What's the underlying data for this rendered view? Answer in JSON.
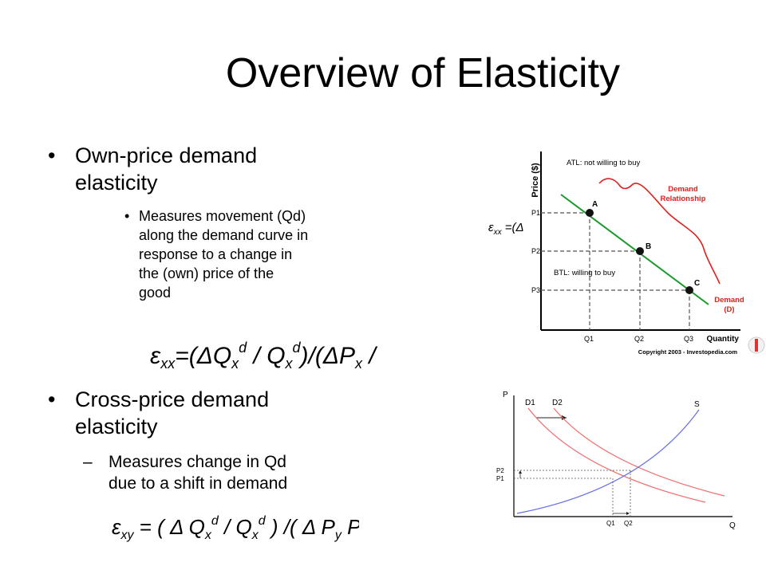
{
  "slide": {
    "title": "Overview of Elasticity",
    "bullets": [
      {
        "bullet": "•",
        "text": "Own-price demand\nelasticity",
        "sub": {
          "bullet": "•",
          "text": "Measures movement (Qd)\nalong the demand curve in\nresponse to a change in\nthe (own) price of the\ngood"
        },
        "formula": "ε_xx = (ΔQ_x^d / Q_x^d)/(ΔP_x / P_x)"
      },
      {
        "bullet": "•",
        "text": "Cross-price demand\nelasticity",
        "sub": {
          "bullet": "–",
          "text": "Measures change in Qd\ndue to a shift in demand"
        },
        "formula": "ε_xy = (ΔQ_x^d / Q_x^d)/(ΔP_y P_y)"
      }
    ]
  },
  "figure1": {
    "y_label": "Price ($)",
    "x_label": "Quantity",
    "atl_text": "ATL: not willing to buy",
    "btl_text": "BTL: willing to buy",
    "relationship_label": [
      "Demand",
      "Relationship"
    ],
    "demand_label": [
      "Demand",
      "(D)"
    ],
    "points": [
      "A",
      "B",
      "C"
    ],
    "price_ticks": [
      "P1",
      "P2",
      "P3"
    ],
    "qty_ticks": [
      "Q1",
      "Q2",
      "Q3"
    ],
    "copyright": "Copyright 2003 - Investopedia.com",
    "overlay_formula": "ε_xx = (Δ",
    "colors": {
      "demand_line": "#1a9a2a",
      "annotation": "#e0201e",
      "dashed": "#555555"
    }
  },
  "figure2": {
    "y_label": "P",
    "x_label": "Q",
    "curves": [
      "D1",
      "D2",
      "S"
    ],
    "price_ticks": [
      "P2",
      "P1"
    ],
    "qty_ticks": [
      "Q1",
      "Q2"
    ],
    "colors": {
      "demand": "#ef6e6e",
      "supply": "#6670e8",
      "axis": "#222222"
    }
  }
}
